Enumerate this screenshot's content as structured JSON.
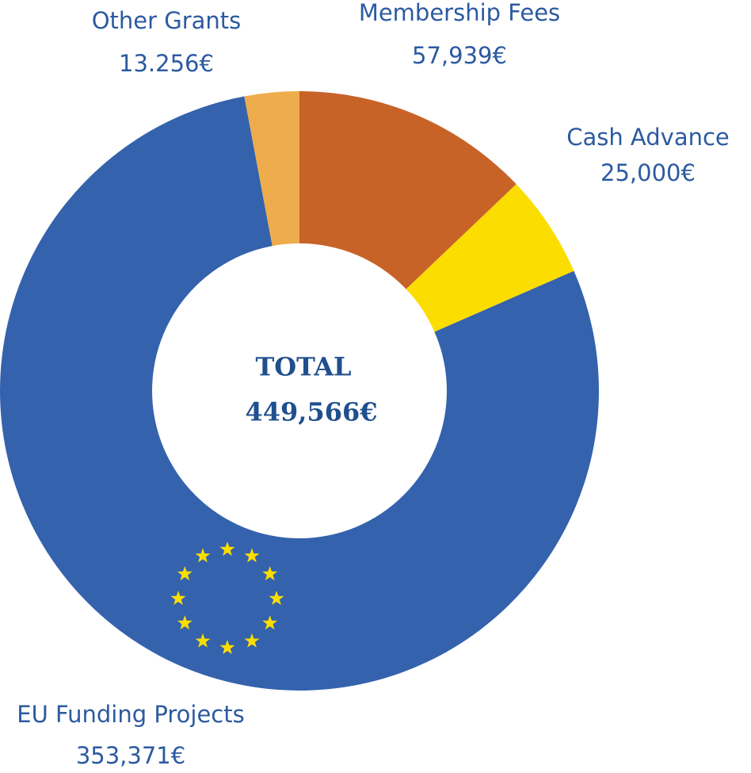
{
  "chart_data": {
    "type": "donut",
    "categories": [
      "Membership Fees",
      "Cash Advance",
      "EU Funding Projects",
      "Other Grants"
    ],
    "values": [
      57939,
      25000,
      353371,
      13256
    ],
    "value_labels": [
      "57,939€",
      "25,000€",
      "353,371€",
      "13.256€"
    ],
    "colors": [
      "#c86328",
      "#fbdd00",
      "#3462ad",
      "#eeac4c"
    ],
    "center_title": "TOTAL",
    "total": 449566,
    "total_label": "449,566€"
  }
}
